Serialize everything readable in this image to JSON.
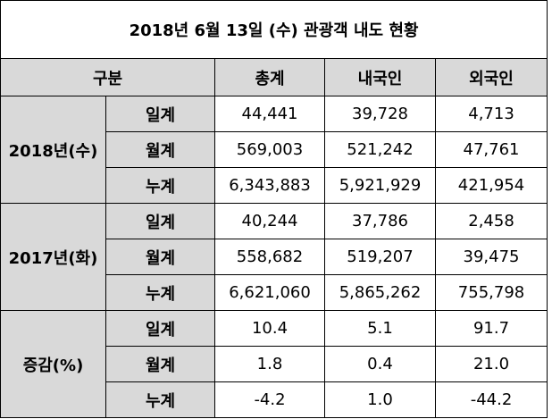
{
  "title": "2018년 6월 13일 (수) 관광객 내도 현황",
  "header": {
    "category": "구분",
    "columns": [
      "총계",
      "내국인",
      "외국인"
    ]
  },
  "groups": [
    {
      "label": "2018년(수)",
      "rows": [
        {
          "type": "일계",
          "values": [
            "44,441",
            "39,728",
            "4,713"
          ]
        },
        {
          "type": "월계",
          "values": [
            "569,003",
            "521,242",
            "47,761"
          ]
        },
        {
          "type": "누계",
          "values": [
            "6,343,883",
            "5,921,929",
            "421,954"
          ]
        }
      ]
    },
    {
      "label": "2017년(화)",
      "rows": [
        {
          "type": "일계",
          "values": [
            "40,244",
            "37,786",
            "2,458"
          ]
        },
        {
          "type": "월계",
          "values": [
            "558,682",
            "519,207",
            "39,475"
          ]
        },
        {
          "type": "누계",
          "values": [
            "6,621,060",
            "5,865,262",
            "755,798"
          ]
        }
      ]
    },
    {
      "label": "증감(%)",
      "rows": [
        {
          "type": "일계",
          "values": [
            "10.4",
            "5.1",
            "91.7"
          ]
        },
        {
          "type": "월계",
          "values": [
            "1.8",
            "0.4",
            "21.0"
          ]
        },
        {
          "type": "누계",
          "values": [
            "-4.2",
            "1.0",
            "-44.2"
          ]
        }
      ]
    }
  ]
}
